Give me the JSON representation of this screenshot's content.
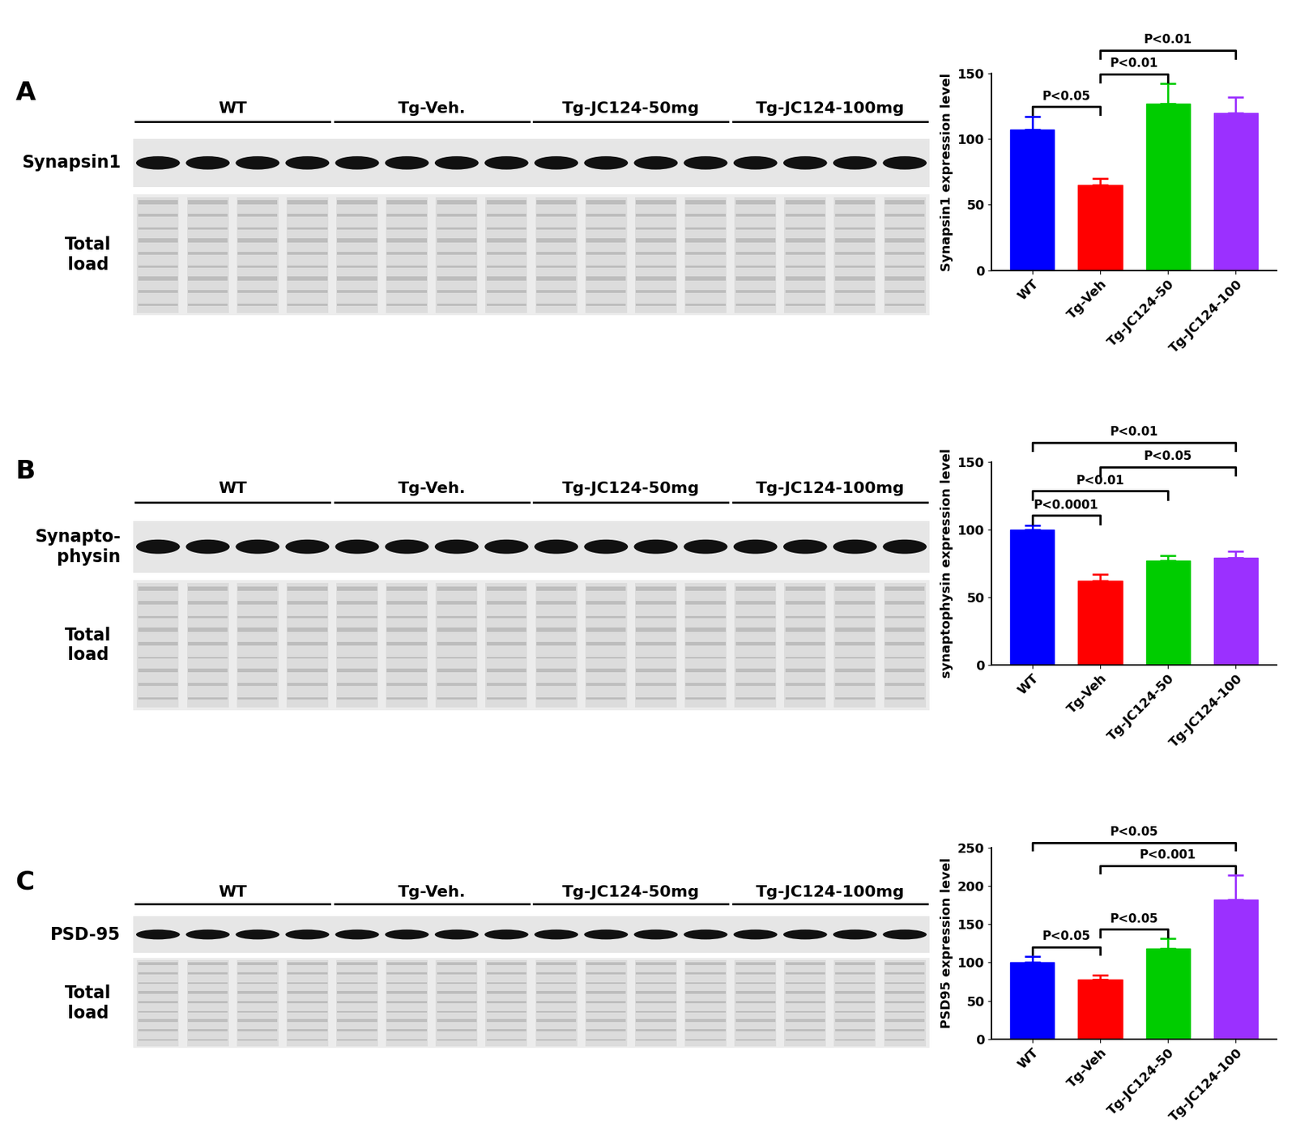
{
  "panels": [
    {
      "letter": "A",
      "groups": [
        "WT",
        "Tg-Veh.",
        "Tg-JC124-50mg",
        "Tg-JC124-100mg"
      ],
      "protein": "Synapsin1",
      "loading": "Total\nload"
    },
    {
      "letter": "B",
      "groups": [
        "WT",
        "Tg-Veh.",
        "Tg-JC124-50mg",
        "Tg-JC124-100mg"
      ],
      "protein": "Synapto-\nphysin",
      "loading": "Total\nload"
    },
    {
      "letter": "C",
      "groups": [
        "WT",
        "Tg-Veh.",
        "Tg-JC124-50mg",
        "Tg-JC124-100mg"
      ],
      "protein": "PSD-95",
      "loading": "Total\nload"
    }
  ],
  "chart_data": [
    {
      "type": "bar",
      "categories": [
        "WT",
        "Tg-Veh",
        "Tg-JC124-50",
        "Tg-JC124-100"
      ],
      "values": [
        107,
        65,
        127,
        120
      ],
      "errors": [
        10,
        5,
        15,
        12
      ],
      "colors": [
        "#0000ff",
        "#ff0000",
        "#00cc00",
        "#9b30ff"
      ],
      "ylabel": "Synapsin1 expression level",
      "ylim": [
        0,
        150
      ],
      "yticks": [
        0,
        50,
        100,
        150
      ],
      "comparisons": [
        {
          "from": "WT",
          "to": "Tg-Veh",
          "label": "P<0.05"
        },
        {
          "from": "Tg-Veh",
          "to": "Tg-JC124-50",
          "label": "P<0.01"
        },
        {
          "from": "Tg-Veh",
          "to": "Tg-JC124-100",
          "label": "P<0.01"
        }
      ]
    },
    {
      "type": "bar",
      "categories": [
        "WT",
        "Tg-Veh",
        "Tg-JC124-50",
        "Tg-JC124-100"
      ],
      "values": [
        100,
        62,
        77,
        79
      ],
      "errors": [
        3,
        5,
        4,
        5
      ],
      "colors": [
        "#0000ff",
        "#ff0000",
        "#00cc00",
        "#9b30ff"
      ],
      "ylabel": "synaptophysin expression level",
      "ylim": [
        0,
        150
      ],
      "yticks": [
        0,
        50,
        100,
        150
      ],
      "comparisons": [
        {
          "from": "WT",
          "to": "Tg-JC124-100",
          "label": "P<0.01"
        },
        {
          "from": "WT",
          "to": "Tg-JC124-50",
          "label": "P<0.01"
        },
        {
          "from": "WT",
          "to": "Tg-Veh",
          "label": "P<0.0001"
        },
        {
          "from": "Tg-Veh",
          "to": "Tg-JC124-100",
          "label": "P<0.05"
        }
      ]
    },
    {
      "type": "bar",
      "categories": [
        "WT",
        "Tg-Veh",
        "Tg-JC124-50",
        "Tg-JC124-100"
      ],
      "values": [
        100,
        78,
        118,
        182
      ],
      "errors": [
        8,
        5,
        13,
        32
      ],
      "colors": [
        "#0000ff",
        "#ff0000",
        "#00cc00",
        "#9b30ff"
      ],
      "ylabel": "PSD95 expression level",
      "ylim": [
        0,
        250
      ],
      "yticks": [
        0,
        50,
        100,
        150,
        200,
        250
      ],
      "comparisons": [
        {
          "from": "WT",
          "to": "Tg-JC124-100",
          "label": "P<0.05"
        },
        {
          "from": "Tg-Veh",
          "to": "Tg-JC124-100",
          "label": "P<0.001"
        },
        {
          "from": "Tg-Veh",
          "to": "Tg-JC124-50",
          "label": "P<0.05"
        },
        {
          "from": "WT",
          "to": "Tg-Veh",
          "label": "P<0.05"
        }
      ]
    }
  ]
}
